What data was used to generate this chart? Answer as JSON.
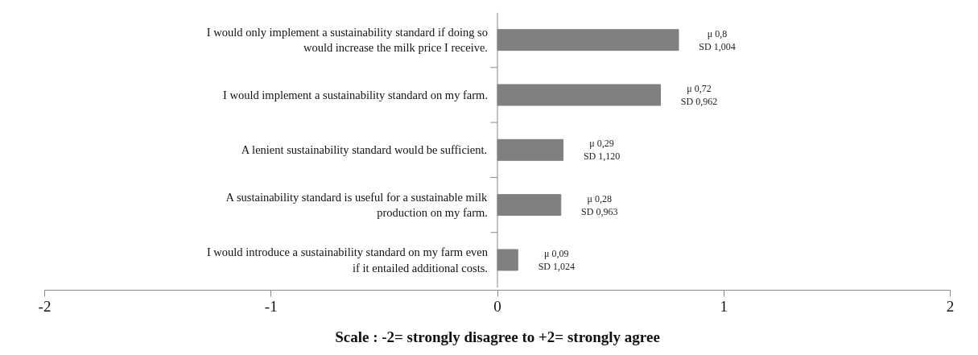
{
  "chart_data": {
    "type": "bar",
    "orientation": "horizontal",
    "categories": [
      "I would only implement a sustainability standard if doing so\nwould increase the milk price I receive.",
      "I would implement a sustainability standard on my farm.",
      "A lenient sustainability standard would be sufficient.",
      "A sustainability standard is useful for a sustainable milk\nproduction on my farm.",
      "I would introduce a sustainability standard on my farm even\nif it entailed additional costs."
    ],
    "values": [
      0.8,
      0.72,
      0.29,
      0.28,
      0.09
    ],
    "value_labels": [
      "μ 0,8\nSD 1,004",
      "μ 0,72\nSD 0,962",
      "μ 0,29\nSD 1,120",
      "μ 0,28\nSD 0,963",
      "μ 0,09\nSD 1,024"
    ],
    "color": "#808080",
    "xlim": [
      -2,
      2
    ],
    "xticks": [
      -2,
      -1,
      0,
      1,
      2
    ],
    "xlabel": "Scale : -2= strongly disagree to +2= strongly agree",
    "grid": false
  }
}
